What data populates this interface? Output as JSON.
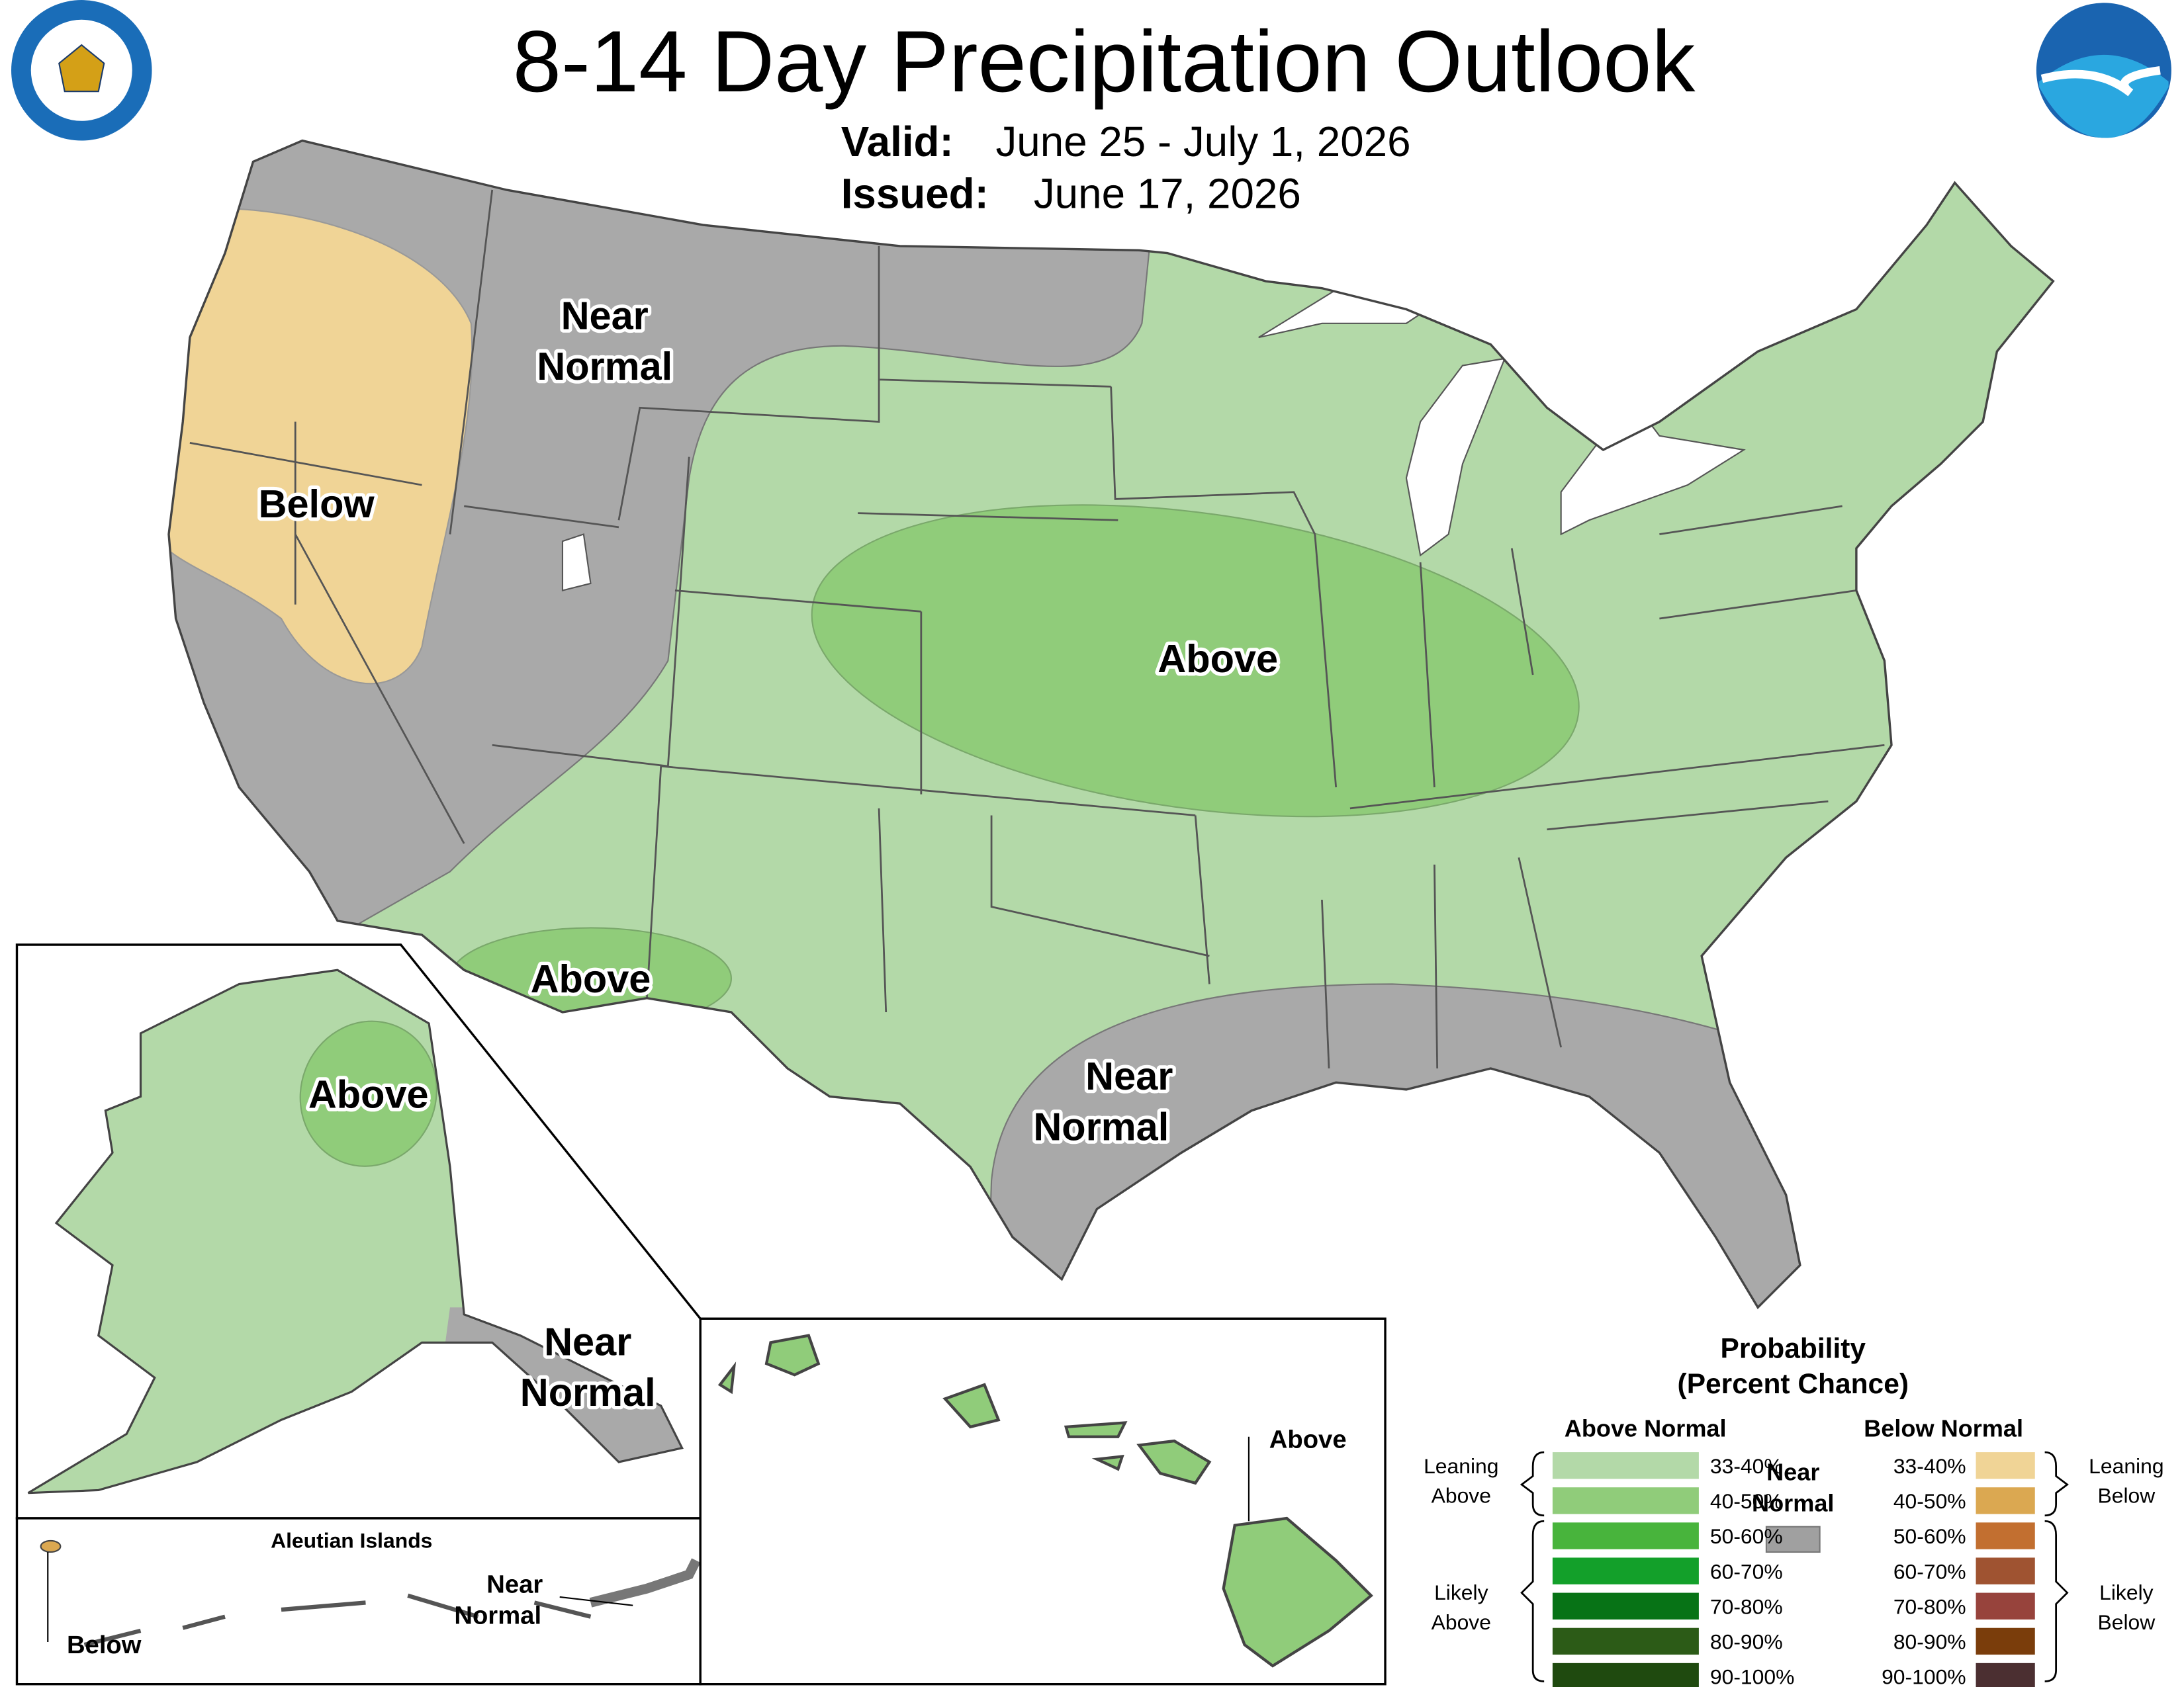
{
  "header": {
    "title": "8-14 Day Precipitation Outlook",
    "valid_label": "Valid:",
    "valid_dates": "June 25 - July 1, 2026",
    "issued_label": "Issued:",
    "issued_date": "June 17, 2026"
  },
  "map_labels": {
    "near_normal_nw": [
      "Near",
      "Normal"
    ],
    "below_west": "Below",
    "above_central": "Above",
    "above_southwest": "Above",
    "near_normal_gulf": [
      "Near",
      "Normal"
    ]
  },
  "alaska": {
    "above": "Above",
    "near_normal": [
      "Near",
      "Normal"
    ]
  },
  "aleutians": {
    "title": "Aleutian Islands",
    "below": "Below",
    "near_normal": [
      "Near",
      "Normal"
    ]
  },
  "hawaii": {
    "above": "Above"
  },
  "legend": {
    "title": [
      "Probability",
      "(Percent Chance)"
    ],
    "above_normal": {
      "heading": "Above Normal",
      "ranges": [
        {
          "label": "33-40%",
          "color": "#b3d9a8"
        },
        {
          "label": "40-50%",
          "color": "#90cc7a"
        },
        {
          "label": "50-60%",
          "color": "#48b43c"
        },
        {
          "label": "60-70%",
          "color": "#13a02a"
        },
        {
          "label": "70-80%",
          "color": "#077316"
        },
        {
          "label": "80-90%",
          "color": "#2c5b17"
        },
        {
          "label": "90-100%",
          "color": "#1f4a0f"
        }
      ]
    },
    "below_normal": {
      "heading": "Below Normal",
      "ranges": [
        {
          "label": "33-40%",
          "color": "#f0d496"
        },
        {
          "label": "40-50%",
          "color": "#dba851"
        },
        {
          "label": "50-60%",
          "color": "#c26f30"
        },
        {
          "label": "60-70%",
          "color": "#9f5331"
        },
        {
          "label": "70-80%",
          "color": "#97433c"
        },
        {
          "label": "80-90%",
          "color": "#7a3d0b"
        },
        {
          "label": "90-100%",
          "color": "#4b2f31"
        }
      ]
    },
    "near_normal": {
      "label": [
        "Near",
        "Normal"
      ],
      "color": "#a0a0a0"
    },
    "leaning_above": [
      "Leaning",
      "Above"
    ],
    "likely_above": [
      "Likely",
      "Above"
    ],
    "leaning_below": [
      "Leaning",
      "Below"
    ],
    "likely_below": [
      "Likely",
      "Below"
    ]
  }
}
